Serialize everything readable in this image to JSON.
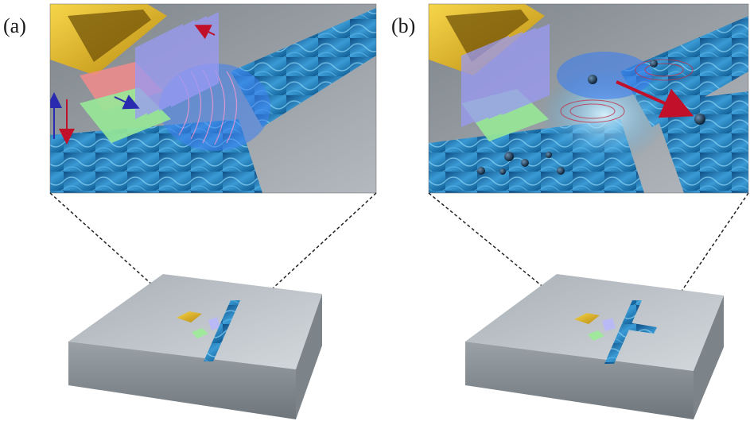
{
  "panels": [
    {
      "label": "(a)"
    },
    {
      "label": "(b)"
    }
  ],
  "colors": {
    "background": "#ffffff",
    "chip_top": "#b9c0c6",
    "chip_side": "#8b9399",
    "zoom_floor": "#9aa0a6",
    "water": "#1b6fb0",
    "water_light": "#5fc0ea",
    "gold": "#e0b21b",
    "transducer_red": "#f07a7a",
    "transducer_green": "#8fe08c",
    "transducer_blue": "#8f8ff2",
    "arrow_red": "#c0102a",
    "arrow_blue": "#2a2ab0",
    "particle": "#0e2d48"
  }
}
